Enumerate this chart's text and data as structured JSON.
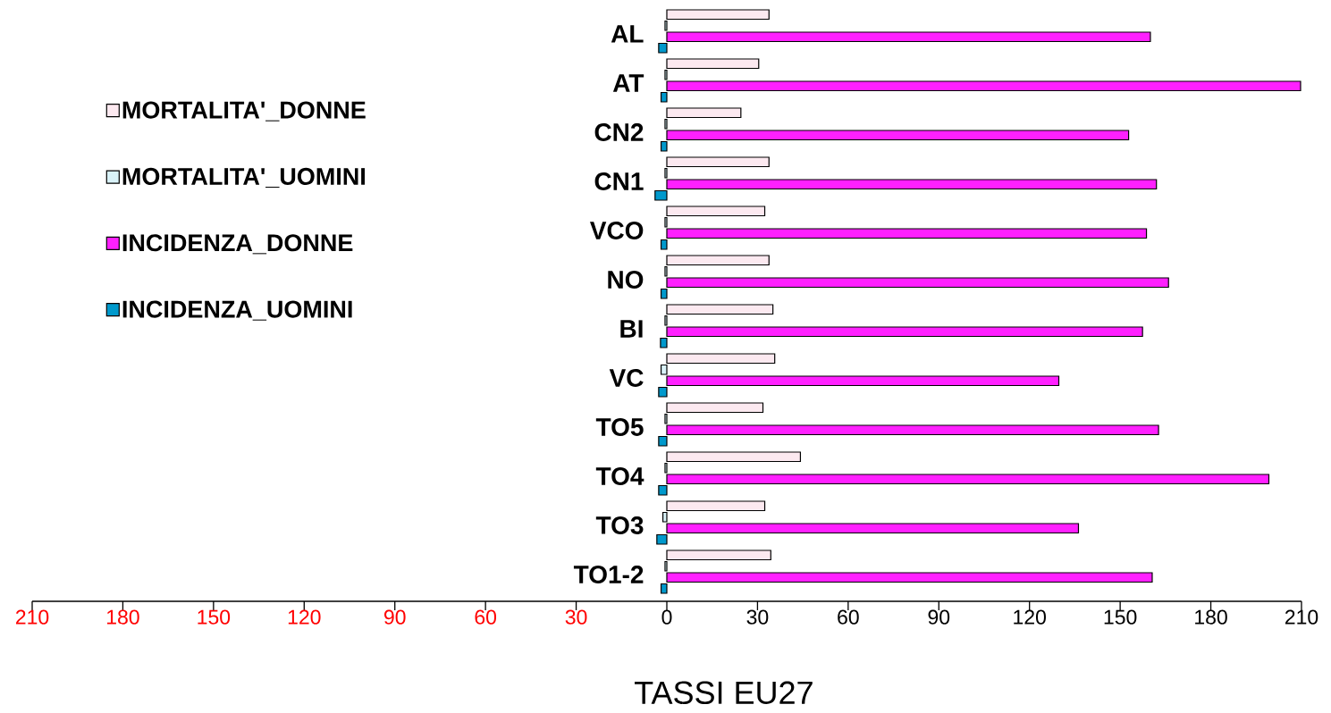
{
  "chart_data": {
    "type": "bar",
    "orientation": "horizontal",
    "categories": [
      "AL",
      "AT",
      "CN2",
      "CN1",
      "VCO",
      "NO",
      "BI",
      "VC",
      "TO5",
      "TO4",
      "TO3",
      "TO1-2"
    ],
    "series": [
      {
        "name": "MORTALITA'_DONNE",
        "color": "#fce9f0",
        "values": [
          33.8,
          30.4,
          24.5,
          33.8,
          32.4,
          33.8,
          35.1,
          35.7,
          31.8,
          44.2,
          32.4,
          34.4
        ]
      },
      {
        "name": "MORTALITA'_UOMINI",
        "color": "#d9f2f8",
        "values": [
          -0.6,
          -0.6,
          -0.6,
          -0.6,
          -0.6,
          -0.6,
          -0.6,
          -1.9,
          -0.6,
          -0.6,
          -1.3,
          -0.6
        ]
      },
      {
        "name": "INCIDENZA_DONNE",
        "color": "#ff20ff",
        "values": [
          160.0,
          209.7,
          152.8,
          162.0,
          158.7,
          166.0,
          157.4,
          129.7,
          162.7,
          199.2,
          136.2,
          160.6
        ]
      },
      {
        "name": "INCIDENZA_UOMINI",
        "color": "#0099cc",
        "values": [
          -2.7,
          -1.9,
          -1.9,
          -3.9,
          -1.9,
          -1.9,
          -2.1,
          -2.7,
          -2.7,
          -2.7,
          -3.3,
          -1.9
        ]
      }
    ],
    "xlabel": "TASSI EU27",
    "xlim": [
      -210,
      210
    ],
    "xticks": [
      {
        "value": -210,
        "label": "210"
      },
      {
        "value": -180,
        "label": "180"
      },
      {
        "value": -150,
        "label": "150"
      },
      {
        "value": -120,
        "label": "120"
      },
      {
        "value": -90,
        "label": "90"
      },
      {
        "value": -60,
        "label": "60"
      },
      {
        "value": -30,
        "label": "30"
      },
      0,
      30,
      60,
      90,
      120,
      150,
      180,
      210
    ],
    "legend": "top left"
  }
}
